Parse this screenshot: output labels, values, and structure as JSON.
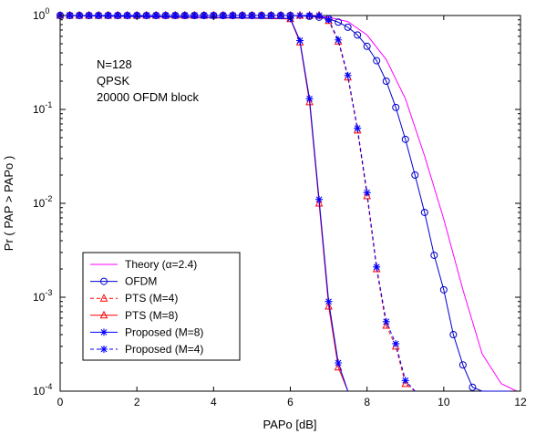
{
  "chart_data": {
    "type": "line",
    "xlabel": "PAPo [dB]",
    "ylabel": "Pr ( PAP > PAPo )",
    "xlim": [
      0,
      12
    ],
    "ylim": [
      0.0001,
      1
    ],
    "y_scale": "log",
    "x_ticks": [
      "0",
      "2",
      "4",
      "6",
      "8",
      "10",
      "12"
    ],
    "y_ticks": [
      {
        "value": 1,
        "mantissa": "10",
        "exponent": "0"
      },
      {
        "value": 0.1,
        "mantissa": "10",
        "exponent": "-1"
      },
      {
        "value": 0.01,
        "mantissa": "10",
        "exponent": "-2"
      },
      {
        "value": 0.001,
        "mantissa": "10",
        "exponent": "-3"
      },
      {
        "value": 0.0001,
        "mantissa": "10",
        "exponent": "-4"
      }
    ],
    "grid": false,
    "legend_position": "bottom-left",
    "annotations": [
      "N=128",
      "QPSK",
      "20000 OFDM block"
    ],
    "series": [
      {
        "name": "Theory (α=2.4)",
        "color": "#ff00ff",
        "dash": "solid",
        "marker": "none",
        "x": [
          0,
          6.0,
          6.5,
          7.0,
          7.5,
          8.0,
          8.5,
          9.0,
          9.5,
          10.0,
          10.5,
          11.0,
          11.5,
          11.9
        ],
        "y": [
          1,
          1,
          0.99,
          0.96,
          0.86,
          0.62,
          0.34,
          0.13,
          0.032,
          0.0068,
          0.0012,
          0.00025,
          0.00012,
          0.0001
        ]
      },
      {
        "name": "OFDM",
        "color": "#0000cc",
        "dash": "solid",
        "marker": "circle",
        "x": [
          0,
          6.0,
          6.5,
          6.75,
          7.0,
          7.25,
          7.5,
          7.75,
          8.0,
          8.25,
          8.5,
          8.75,
          9.0,
          9.25,
          9.5,
          9.75,
          10.0,
          10.25,
          10.5,
          10.75,
          11.0,
          11.25,
          11.5,
          11.75
        ],
        "y": [
          1,
          1,
          0.98,
          0.96,
          0.92,
          0.85,
          0.75,
          0.62,
          0.47,
          0.33,
          0.2,
          0.105,
          0.048,
          0.02,
          0.008,
          0.0028,
          0.0012,
          0.0004,
          0.00019,
          0.00011,
          0.0001,
          0.0001,
          0.0001,
          0.0001
        ]
      },
      {
        "name": "PTS (M=4)",
        "color": "#ff0000",
        "dash": "dashed",
        "marker": "triangle",
        "x": [
          0,
          6.75,
          7.0,
          7.25,
          7.5,
          7.75,
          8.0,
          8.25,
          8.5,
          8.75,
          9.0,
          9.25
        ],
        "y": [
          1,
          1,
          0.88,
          0.53,
          0.22,
          0.06,
          0.012,
          0.002,
          0.0005,
          0.0003,
          0.00012,
          0.0001
        ]
      },
      {
        "name": "PTS (M=8)",
        "color": "#ff0000",
        "dash": "solid",
        "marker": "triangle",
        "x": [
          0,
          6.0,
          6.25,
          6.5,
          6.75,
          7.0,
          7.25,
          7.5
        ],
        "y": [
          1,
          0.92,
          0.52,
          0.12,
          0.01,
          0.0008,
          0.00018,
          0.0001
        ]
      },
      {
        "name": "Proposed (M=8)",
        "color": "#0000ff",
        "dash": "solid",
        "marker": "asterisk",
        "x": [
          0,
          6.0,
          6.25,
          6.5,
          6.75,
          7.0,
          7.25,
          7.5
        ],
        "y": [
          1,
          0.93,
          0.54,
          0.13,
          0.011,
          0.0009,
          0.0002,
          0.0001
        ]
      },
      {
        "name": "Proposed (M=4)",
        "color": "#0000ff",
        "dash": "dashed",
        "marker": "asterisk",
        "x": [
          0,
          6.75,
          7.0,
          7.25,
          7.5,
          7.75,
          8.0,
          8.25,
          8.5,
          8.75,
          9.0,
          9.25
        ],
        "y": [
          1,
          1,
          0.9,
          0.55,
          0.23,
          0.063,
          0.013,
          0.0021,
          0.00055,
          0.00032,
          0.00013,
          0.0001
        ]
      }
    ]
  }
}
